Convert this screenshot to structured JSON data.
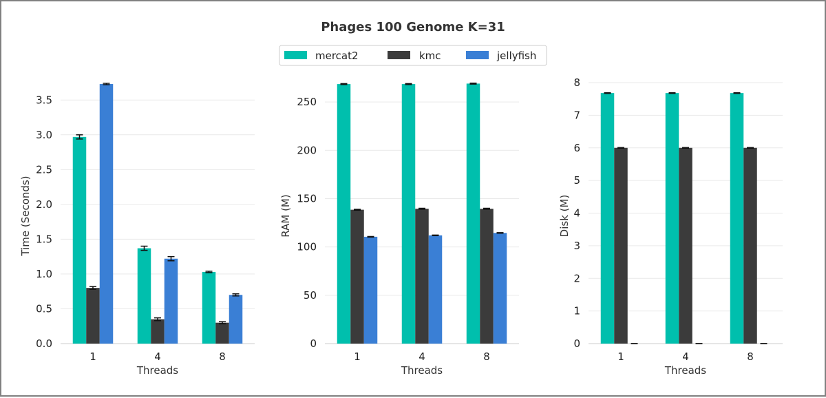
{
  "colors": {
    "series": [
      "#00bfad",
      "#3b3b3b",
      "#3a7fd5"
    ],
    "grid": "#e9e9e9",
    "axis": "#d6d6d6",
    "text": "#333333"
  },
  "chart_data": {
    "title": "Phages 100 Genome K=31",
    "legend": {
      "placement": "top-center",
      "entries": [
        "mercat2",
        "kmc",
        "jellyfish"
      ]
    },
    "grid": true,
    "panels": [
      {
        "type": "bar",
        "xlabel": "Threads",
        "ylabel": "Time (Seconds)",
        "categories": [
          "1",
          "4",
          "8"
        ],
        "ylim": [
          0,
          3.75
        ],
        "yticks": [
          0.0,
          0.5,
          1.0,
          1.5,
          2.0,
          2.5,
          3.0,
          3.5
        ],
        "ytick_labels": [
          "0.0",
          "0.5",
          "1.0",
          "1.5",
          "2.0",
          "2.5",
          "3.0",
          "3.5"
        ],
        "series": [
          {
            "name": "mercat2",
            "values": [
              2.97,
              1.37,
              1.03
            ],
            "errors": [
              0.03,
              0.03,
              0.01
            ]
          },
          {
            "name": "kmc",
            "values": [
              0.8,
              0.35,
              0.3
            ],
            "errors": [
              0.02,
              0.02,
              0.015
            ]
          },
          {
            "name": "jellyfish",
            "values": [
              3.73,
              1.22,
              0.7
            ],
            "errors": [
              0.01,
              0.03,
              0.015
            ]
          }
        ]
      },
      {
        "type": "bar",
        "xlabel": "Threads",
        "ylabel": "RAM (M)",
        "categories": [
          "1",
          "4",
          "8"
        ],
        "ylim": [
          0,
          270
        ],
        "yticks": [
          0,
          50,
          100,
          150,
          200,
          250
        ],
        "ytick_labels": [
          "0",
          "50",
          "100",
          "150",
          "200",
          "250"
        ],
        "series": [
          {
            "name": "mercat2",
            "values": [
              268.5,
              268.5,
              269
            ],
            "errors": [
              0.5,
              0.5,
              0.5
            ]
          },
          {
            "name": "kmc",
            "values": [
              138.5,
              139.5,
              139.5
            ],
            "errors": [
              0.5,
              0.5,
              0.5
            ]
          },
          {
            "name": "jellyfish",
            "values": [
              110.5,
              112,
              114.5
            ],
            "errors": [
              0.3,
              0.3,
              0.3
            ]
          }
        ]
      },
      {
        "type": "bar",
        "xlabel": "Threads",
        "ylabel": "Disk (M)",
        "categories": [
          "1",
          "4",
          "8"
        ],
        "ylim": [
          0,
          8
        ],
        "yticks": [
          0,
          1,
          2,
          3,
          4,
          5,
          6,
          7,
          8
        ],
        "ytick_labels": [
          "0",
          "1",
          "2",
          "3",
          "4",
          "5",
          "6",
          "7",
          "8"
        ],
        "series": [
          {
            "name": "mercat2",
            "values": [
              7.68,
              7.68,
              7.68
            ],
            "errors": [
              0.01,
              0.01,
              0.01
            ]
          },
          {
            "name": "kmc",
            "values": [
              6.0,
              6.0,
              6.0
            ],
            "errors": [
              0.01,
              0.01,
              0.01
            ]
          },
          {
            "name": "jellyfish",
            "values": [
              0,
              0,
              0
            ],
            "errors": [
              0,
              0,
              0
            ]
          }
        ]
      }
    ]
  }
}
